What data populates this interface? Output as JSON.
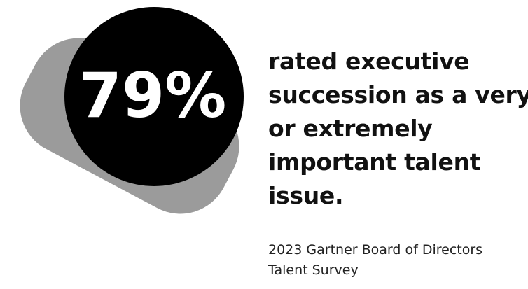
{
  "stat": "79%",
  "statement_lines": [
    "rated executive",
    "succession as a very",
    "or extremely",
    "important talent",
    "issue."
  ],
  "source_lines": [
    "2023 Gartner Board of Directors",
    "Talent Survey"
  ]
}
